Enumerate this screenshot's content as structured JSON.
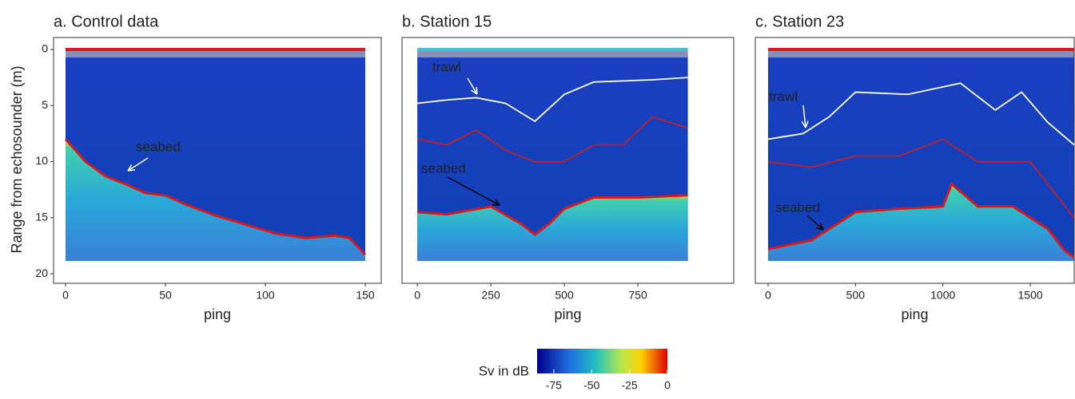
{
  "chart_data": [
    {
      "type": "echogram",
      "title": "a. Control data",
      "xlabel": "ping",
      "ylabel": "Range from echosounder (m)",
      "xlim": [
        -6,
        158
      ],
      "xticks": [
        0,
        50,
        100,
        150
      ],
      "ylim": [
        20.85,
        -1.07
      ],
      "yticks": [
        0,
        5,
        10,
        15,
        20
      ],
      "annotations": [
        "seabed"
      ],
      "series": [
        {
          "color": "#d7191c",
          "x": [
            0,
            10,
            20,
            30,
            40,
            50,
            60,
            75,
            90,
            105,
            120,
            135,
            142,
            150
          ],
          "values": [
            8,
            10,
            11.3,
            12,
            12.8,
            13,
            13.8,
            14.8,
            15.6,
            16.4,
            16.8,
            16.6,
            16.8,
            18.3
          ]
        }
      ]
    },
    {
      "type": "echogram",
      "title": "b. Station 15",
      "xlabel": "ping",
      "xlim": [
        -52,
        1076
      ],
      "xticks": [
        0,
        250,
        500,
        750
      ],
      "ylim": [
        20.85,
        -1.07
      ],
      "annotations": [
        "trawl",
        "seabed"
      ],
      "series": [
        {
          "color": "#d7191c",
          "x": [
            0,
            100,
            250,
            350,
            400,
            450,
            500,
            600,
            750,
            920
          ],
          "values": [
            14.5,
            14.7,
            14,
            15.5,
            16.5,
            15.5,
            14.2,
            13.2,
            13.2,
            13
          ]
        },
        {
          "color": "#ffffff",
          "x": [
            0,
            100,
            200,
            300,
            400,
            500,
            600,
            700,
            800,
            920
          ],
          "values": [
            4.8,
            4.5,
            4.3,
            4.8,
            6.4,
            4,
            2.9,
            2.8,
            2.7,
            2.5
          ]
        },
        {
          "color": "#c0202a",
          "x": [
            0,
            100,
            200,
            300,
            400,
            500,
            600,
            700,
            800,
            920
          ],
          "values": [
            8,
            8.5,
            7.2,
            9,
            10,
            10,
            8.5,
            8.5,
            6,
            7
          ]
        }
      ]
    },
    {
      "type": "echogram",
      "title": "c. Station 23",
      "xlabel": "ping",
      "xlim": [
        -73,
        1751
      ],
      "xticks": [
        0,
        500,
        1000,
        1500
      ],
      "ylim": [
        20.85,
        -1.07
      ],
      "annotations": [
        "trawl",
        "seabed"
      ],
      "series": [
        {
          "color": "#d7191c",
          "x": [
            0,
            250,
            500,
            750,
            1000,
            1050,
            1200,
            1400,
            1600,
            1700,
            1750
          ],
          "values": [
            17.8,
            17,
            14.5,
            14.2,
            14,
            12,
            14,
            14,
            16,
            18,
            18.5
          ]
        },
        {
          "color": "#ffffff",
          "x": [
            0,
            200,
            350,
            500,
            800,
            1100,
            1300,
            1450,
            1600,
            1750
          ],
          "values": [
            8,
            7.5,
            6,
            3.8,
            4,
            3,
            5.4,
            3.8,
            6.5,
            8.5
          ]
        },
        {
          "color": "#c0202a",
          "x": [
            0,
            250,
            500,
            750,
            1000,
            1200,
            1500,
            1700,
            1750
          ],
          "values": [
            10,
            10.5,
            9.5,
            9.5,
            8,
            10,
            10,
            14,
            15
          ]
        }
      ]
    },
    {
      "type": "colorbar",
      "title": "Sv in dB",
      "xlim": [
        -86,
        0
      ],
      "xticks": [
        -75,
        -50,
        -25,
        0
      ]
    }
  ]
}
